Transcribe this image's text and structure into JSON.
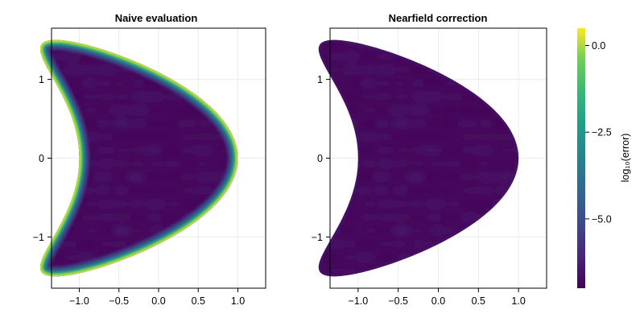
{
  "chart_data": [
    {
      "type": "heatmap",
      "title": "Naive evaluation",
      "xlabel": "",
      "ylabel": "",
      "xlim": [
        -1.35,
        1.35
      ],
      "ylim": [
        -1.65,
        1.65
      ],
      "xticks": [
        -1.0,
        -0.5,
        0.0,
        0.5,
        1.0
      ],
      "xtick_labels": [
        "−1.0",
        "−0.5",
        "0.0",
        "0.5",
        "1.0"
      ],
      "yticks": [
        -1,
        0,
        1
      ],
      "ytick_labels": [
        "−1",
        "0",
        "1"
      ],
      "grid": true,
      "domain": "kite-shaped region",
      "interior_log10_error": -6.8,
      "boundary_log10_error": 0.5
    },
    {
      "type": "heatmap",
      "title": "Nearfield correction",
      "xlabel": "",
      "ylabel": "",
      "xlim": [
        -1.35,
        1.35
      ],
      "ylim": [
        -1.65,
        1.65
      ],
      "xticks": [
        -1.0,
        -0.5,
        0.0,
        0.5,
        1.0
      ],
      "xtick_labels": [
        "−1.0",
        "−0.5",
        "0.0",
        "0.5",
        "1.0"
      ],
      "yticks": [
        -1,
        0,
        1
      ],
      "ytick_labels": [
        "−1",
        "0",
        "1"
      ],
      "grid": true,
      "domain": "kite-shaped region",
      "interior_log10_error": -6.8,
      "boundary_log10_error": -6.5
    }
  ],
  "colorbar": {
    "label": "log₁₀(error)",
    "colormap": "viridis",
    "range": [
      -7.0,
      0.5
    ],
    "ticks": [
      0.0,
      -2.5,
      -5.0
    ],
    "tick_labels": [
      "0.0",
      "−2.5",
      "−5.0"
    ]
  },
  "colors": {
    "viridis_low": "#440154",
    "viridis_mid": "#21918c",
    "viridis_high": "#fde725"
  }
}
